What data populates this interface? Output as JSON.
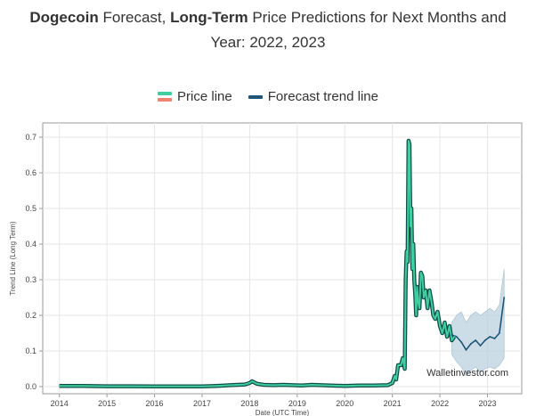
{
  "title": {
    "part1_bold": "Dogecoin",
    "part2": " Forecast, ",
    "part3_bold": "Long-Term",
    "part4": " Price Predictions for Next Months and",
    "line2": "Year: 2022, 2023"
  },
  "legend": {
    "price_label": "Price line",
    "forecast_label": "Forecast trend line"
  },
  "colors": {
    "price_line": "#3fcf9f",
    "price_line_alt": "#f0846e",
    "price_halo": "#0f4c4a",
    "forecast_line": "#1f5577",
    "forecast_band": "#bcd2df",
    "grid": "#e6e6e6",
    "axis": "#9a9a9a"
  },
  "watermark": "Walletinvestor.com",
  "chart_data": {
    "type": "line",
    "xlabel": "Date (UTC Time)",
    "ylabel": "Trend Line (Long Term)",
    "x_ticks": [
      "2014",
      "2015",
      "2016",
      "2017",
      "2018",
      "2019",
      "2020",
      "2021",
      "2022",
      "2023"
    ],
    "y_ticks": [
      "0.0",
      "0.1",
      "0.2",
      "0.3",
      "0.4",
      "0.5",
      "0.6",
      "0.7"
    ],
    "xlim": [
      2013.65,
      2023.72
    ],
    "ylim": [
      -0.02,
      0.74
    ],
    "grid": true,
    "legend_position": "top-center",
    "series": [
      {
        "name": "Price line",
        "x": [
          2014.0,
          2014.5,
          2015.0,
          2015.5,
          2016.0,
          2016.5,
          2017.0,
          2017.3,
          2017.6,
          2017.9,
          2018.0,
          2018.05,
          2018.15,
          2018.3,
          2018.5,
          2018.7,
          2018.9,
          2019.1,
          2019.3,
          2019.5,
          2019.7,
          2020.0,
          2020.3,
          2020.6,
          2020.9,
          2021.0,
          2021.05,
          2021.08,
          2021.12,
          2021.18,
          2021.22,
          2021.26,
          2021.28,
          2021.3,
          2021.32,
          2021.34,
          2021.36,
          2021.38,
          2021.4,
          2021.42,
          2021.44,
          2021.46,
          2021.48,
          2021.5,
          2021.52,
          2021.54,
          2021.57,
          2021.6,
          2021.63,
          2021.66,
          2021.7,
          2021.74,
          2021.78,
          2021.82,
          2021.86,
          2021.9,
          2021.95,
          2022.0,
          2022.05,
          2022.1,
          2022.15,
          2022.2,
          2022.25,
          2022.3
        ],
        "values": [
          0.002,
          0.002,
          0.001,
          0.001,
          0.0005,
          0.0005,
          0.0005,
          0.002,
          0.004,
          0.006,
          0.01,
          0.015,
          0.008,
          0.005,
          0.004,
          0.005,
          0.004,
          0.003,
          0.005,
          0.004,
          0.003,
          0.002,
          0.003,
          0.003,
          0.004,
          0.01,
          0.03,
          0.02,
          0.06,
          0.06,
          0.08,
          0.05,
          0.3,
          0.38,
          0.35,
          0.69,
          0.68,
          0.45,
          0.5,
          0.33,
          0.4,
          0.3,
          0.26,
          0.2,
          0.28,
          0.24,
          0.22,
          0.32,
          0.31,
          0.25,
          0.27,
          0.22,
          0.27,
          0.24,
          0.2,
          0.19,
          0.21,
          0.17,
          0.15,
          0.18,
          0.14,
          0.17,
          0.13,
          0.14
        ]
      },
      {
        "name": "Forecast trend line",
        "x": [
          2022.25,
          2022.35,
          2022.45,
          2022.55,
          2022.65,
          2022.75,
          2022.85,
          2022.95,
          2023.05,
          2023.15,
          2023.25,
          2023.35
        ],
        "values": [
          0.145,
          0.14,
          0.125,
          0.103,
          0.12,
          0.13,
          0.115,
          0.13,
          0.14,
          0.135,
          0.15,
          0.25
        ],
        "lower": [
          0.09,
          0.07,
          0.055,
          0.03,
          0.045,
          0.055,
          0.04,
          0.05,
          0.055,
          0.05,
          0.06,
          0.08
        ],
        "upper": [
          0.18,
          0.2,
          0.21,
          0.18,
          0.2,
          0.21,
          0.2,
          0.21,
          0.22,
          0.21,
          0.23,
          0.33
        ]
      }
    ]
  }
}
